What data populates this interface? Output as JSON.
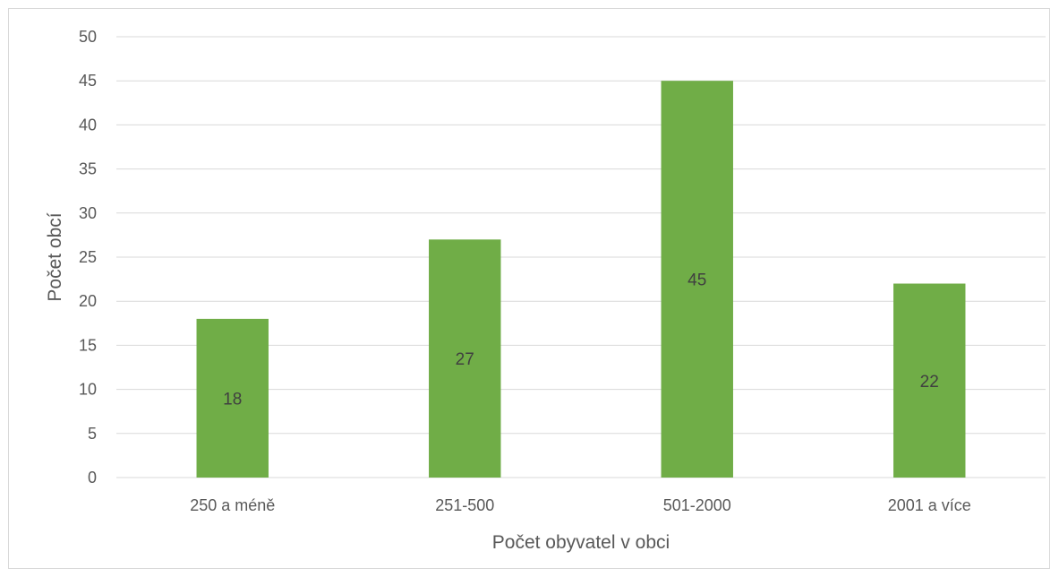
{
  "chart_data": {
    "type": "bar",
    "title": "",
    "xlabel": "Počet obyvatel v obci",
    "ylabel": "Počet obcí",
    "categories": [
      "250 a méně",
      "251-500",
      "501-2000",
      "2001 a více"
    ],
    "values": [
      18,
      27,
      45,
      22
    ],
    "data_labels": [
      "18",
      "27",
      "45",
      "22"
    ],
    "ylim": [
      0,
      50
    ],
    "yticks": [
      "0",
      "5",
      "10",
      "15",
      "20",
      "25",
      "30",
      "35",
      "40",
      "45",
      "50"
    ],
    "grid": true,
    "legend": "none",
    "colors": {
      "bar": "#70ad47",
      "grid": "#d9d9d9",
      "text": "#595959"
    }
  }
}
